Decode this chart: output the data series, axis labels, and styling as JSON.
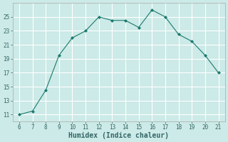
{
  "x": [
    6,
    7,
    8,
    9,
    10,
    11,
    12,
    13,
    14,
    15,
    16,
    17,
    18,
    19,
    20,
    21
  ],
  "y": [
    11,
    11.5,
    14.5,
    19.5,
    22.0,
    23.0,
    25.0,
    24.5,
    24.5,
    23.5,
    26.0,
    25.0,
    22.5,
    21.5,
    19.5,
    17.0
  ],
  "line_color": "#1a7a6e",
  "marker": "D",
  "marker_size": 2,
  "bg_color": "#cceae7",
  "grid_color": "#ffffff",
  "grid_minor_color": "#ddf0ee",
  "xlabel": "Humidex (Indice chaleur)",
  "xlim": [
    5.5,
    21.5
  ],
  "ylim": [
    10.0,
    27.0
  ],
  "xticks": [
    6,
    7,
    8,
    9,
    10,
    11,
    12,
    13,
    14,
    15,
    16,
    17,
    18,
    19,
    20,
    21
  ],
  "yticks": [
    11,
    13,
    15,
    17,
    19,
    21,
    23,
    25
  ],
  "tick_fontsize": 5.5,
  "xlabel_fontsize": 7.0,
  "tick_color": "#336666"
}
